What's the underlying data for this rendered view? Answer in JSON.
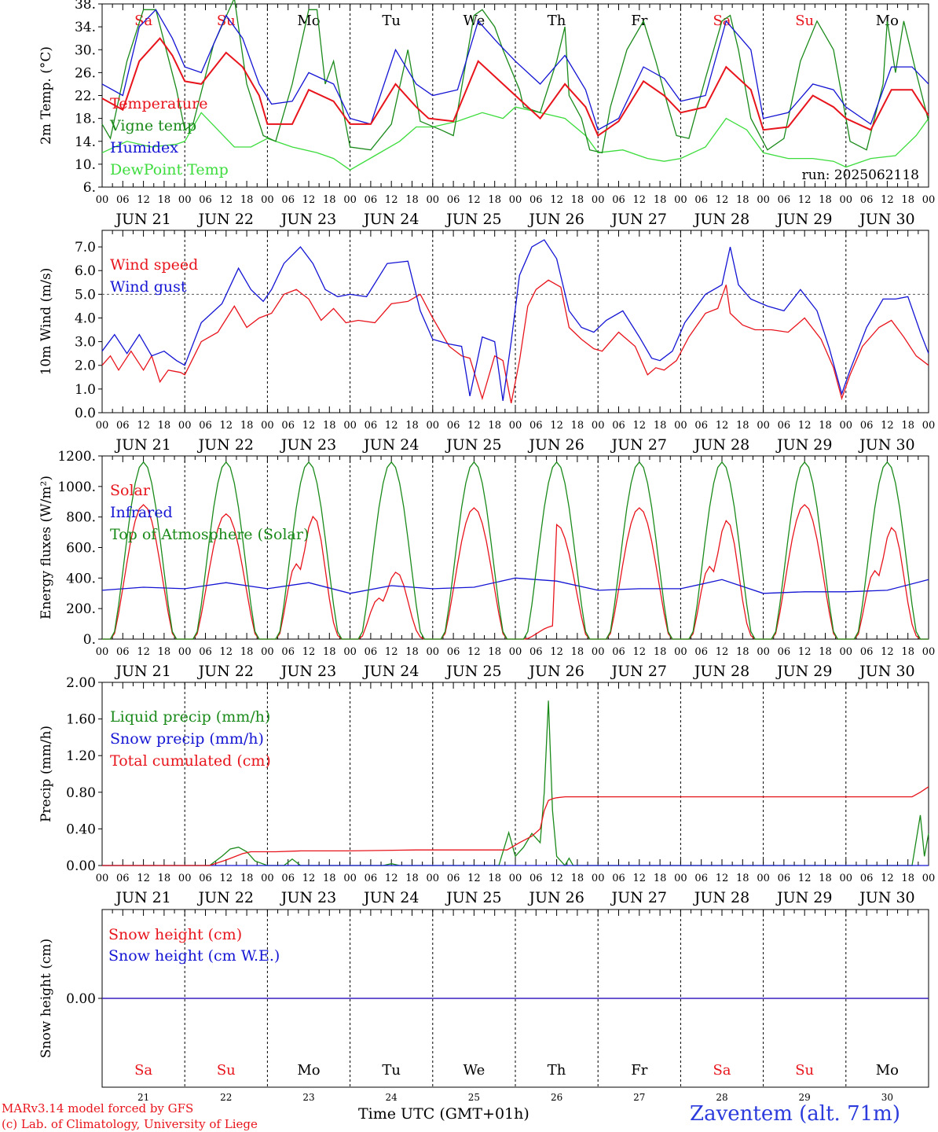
{
  "x_axis": {
    "hour_ticks": [
      "00",
      "06",
      "12",
      "18"
    ],
    "end_tick": "00",
    "month": "JUN",
    "days": [
      "21",
      "22",
      "23",
      "24",
      "25",
      "26",
      "27",
      "28",
      "29",
      "30"
    ],
    "weekdays": [
      "Sa",
      "Su",
      "Mo",
      "Tu",
      "We",
      "Th",
      "Fr",
      "Sa",
      "Su",
      "Mo"
    ],
    "weekend_color": "#e8141c",
    "weekday_color": "#000000",
    "xlabel": "Time UTC (GMT+01h)"
  },
  "footer": {
    "model_line": "MARv3.14 model forced by GFS",
    "credit_line": "(c) Lab. of Climatology, University of Liege",
    "station": "Zaventem (alt. 71m)"
  },
  "chart_data": [
    {
      "id": "temp",
      "type": "line",
      "ylabel": "2m Temp. (°C)",
      "ylim": [
        6,
        38
      ],
      "yticks": [
        6,
        10,
        14,
        18,
        22,
        26,
        30,
        34,
        38
      ],
      "ytick_labels": [
        "6.",
        "10.",
        "14.",
        "18.",
        "22.",
        "26.",
        "30.",
        "34.",
        "38."
      ],
      "annotation": "run: 2025062118",
      "refline": null,
      "x_range_days": [
        0,
        10
      ],
      "series": [
        {
          "name": "Temperature",
          "color": "#e8141c",
          "x": [
            0,
            0.25,
            0.45,
            0.7,
            0.85,
            1,
            1.2,
            1.5,
            1.7,
            1.9,
            2,
            2.3,
            2.5,
            2.8,
            3,
            3.25,
            3.55,
            3.8,
            3.95,
            4.25,
            4.55,
            4.85,
            5,
            5.3,
            5.6,
            5.85,
            6,
            6.25,
            6.55,
            6.8,
            7,
            7.3,
            7.55,
            7.85,
            8,
            8.3,
            8.6,
            8.85,
            9,
            9.3,
            9.55,
            9.8,
            10
          ],
          "values": [
            21.5,
            19.5,
            28,
            32,
            29,
            24.5,
            24,
            29.5,
            27,
            22,
            17,
            17,
            23,
            21,
            17,
            17,
            24,
            20,
            18,
            17.5,
            28,
            24,
            22,
            18,
            24,
            20,
            15,
            17.5,
            24.5,
            22,
            19,
            20,
            27,
            23,
            16,
            16.5,
            22,
            20,
            18,
            16,
            23,
            23,
            18.5
          ]
        },
        {
          "name": "Vigne temp",
          "color": "#1a8a1a",
          "x": [
            0,
            0.1,
            0.3,
            0.5,
            0.65,
            0.9,
            1,
            1.1,
            1.35,
            1.6,
            1.75,
            1.95,
            2.1,
            2.3,
            2.5,
            2.6,
            2.7,
            2.8,
            3,
            3.25,
            3.5,
            3.7,
            3.85,
            4.1,
            4.25,
            4.5,
            4.6,
            4.75,
            4.85,
            5.05,
            5.1,
            5.3,
            5.5,
            5.6,
            5.65,
            5.8,
            5.9,
            6.05,
            6.15,
            6.35,
            6.55,
            6.7,
            6.85,
            6.95,
            7.1,
            7.3,
            7.5,
            7.6,
            7.7,
            7.85,
            8.05,
            8.25,
            8.45,
            8.65,
            8.85,
            9.05,
            9.25,
            9.45,
            9.5,
            9.6,
            9.7,
            9.85,
            10
          ],
          "values": [
            17,
            14.5,
            28,
            37,
            37,
            23,
            16,
            17,
            31,
            39,
            24,
            15,
            14,
            24,
            37,
            37,
            24,
            28,
            13,
            12.5,
            17,
            30,
            17.5,
            16,
            15,
            36,
            37,
            34,
            30,
            23,
            20,
            19,
            28,
            34,
            22,
            18,
            12.5,
            12,
            20,
            30,
            35,
            28,
            20,
            15,
            14.5,
            25,
            35,
            36,
            30,
            18,
            12.5,
            14.5,
            28,
            35,
            30,
            14,
            12.5,
            24,
            35,
            26,
            35,
            26,
            17.5
          ]
        },
        {
          "name": "Humidex",
          "color": "#1414d4",
          "x": [
            0,
            0.25,
            0.45,
            0.65,
            0.85,
            1,
            1.2,
            1.5,
            1.7,
            1.9,
            2.05,
            2.3,
            2.5,
            2.8,
            3,
            3.25,
            3.55,
            3.8,
            4,
            4.3,
            4.55,
            4.8,
            5,
            5.3,
            5.6,
            5.85,
            6,
            6.25,
            6.55,
            6.8,
            7,
            7.3,
            7.55,
            7.85,
            8,
            8.3,
            8.6,
            8.85,
            9,
            9.3,
            9.55,
            9.8,
            10
          ],
          "values": [
            24,
            22,
            34,
            37,
            32,
            27,
            26,
            36,
            32,
            24,
            20.5,
            21,
            26,
            24,
            18,
            17,
            30,
            24,
            22,
            23,
            35,
            31,
            28,
            24,
            29,
            23,
            16,
            18,
            27,
            25,
            21,
            22,
            35,
            30,
            18,
            19,
            24,
            23,
            20,
            17,
            27,
            27,
            24
          ]
        },
        {
          "name": "DewPoint Temp",
          "color": "#3cdc3c",
          "x": [
            0,
            0.3,
            0.6,
            0.9,
            1,
            1.2,
            1.4,
            1.6,
            1.8,
            2,
            2.3,
            2.6,
            2.8,
            3,
            3.3,
            3.6,
            3.8,
            4,
            4.3,
            4.6,
            4.85,
            5,
            5.3,
            5.6,
            5.85,
            6,
            6.3,
            6.6,
            6.8,
            7,
            7.3,
            7.55,
            7.8,
            8,
            8.3,
            8.6,
            8.85,
            9,
            9.3,
            9.6,
            9.85,
            10
          ],
          "values": [
            12,
            14,
            13,
            13.5,
            14,
            19,
            16,
            13,
            13,
            14.5,
            13,
            12,
            11,
            9,
            11.5,
            14,
            16.5,
            16.5,
            17.5,
            19,
            18,
            20,
            19,
            18,
            15,
            12,
            12.5,
            11,
            10.5,
            11,
            13,
            18,
            16,
            12,
            11,
            11,
            10.5,
            9.5,
            11,
            11.5,
            15,
            18
          ]
        }
      ]
    },
    {
      "id": "wind",
      "type": "line",
      "ylabel": "10m Wind (m/s)",
      "ylim": [
        0,
        7.7
      ],
      "yticks": [
        0,
        1,
        2,
        3,
        4,
        5,
        6,
        7
      ],
      "ytick_labels": [
        "0.0",
        "1.0",
        "2.0",
        "3.0",
        "4.0",
        "5.0",
        "6.0",
        "7.0"
      ],
      "refline": 5,
      "x_range_days": [
        0,
        10
      ],
      "series": [
        {
          "name": "Wind speed",
          "color": "#e8141c",
          "x": [
            0,
            0.1,
            0.2,
            0.35,
            0.5,
            0.6,
            0.7,
            0.8,
            0.95,
            1,
            1.2,
            1.4,
            1.6,
            1.75,
            1.9,
            2.05,
            2.2,
            2.35,
            2.5,
            2.65,
            2.8,
            2.95,
            3.1,
            3.3,
            3.5,
            3.7,
            3.85,
            4,
            4.2,
            4.35,
            4.45,
            4.6,
            4.75,
            4.85,
            4.95,
            5.05,
            5.15,
            5.25,
            5.4,
            5.55,
            5.65,
            5.8,
            5.95,
            6.05,
            6.25,
            6.45,
            6.6,
            6.7,
            6.8,
            6.95,
            7.1,
            7.3,
            7.45,
            7.55,
            7.6,
            7.75,
            7.9,
            8.1,
            8.3,
            8.5,
            8.7,
            8.85,
            8.95,
            9.05,
            9.2,
            9.4,
            9.55,
            9.7,
            9.85,
            10
          ],
          "values": [
            2,
            2.4,
            1.8,
            2.6,
            1.8,
            2.4,
            1.3,
            1.8,
            1.7,
            1.6,
            3,
            3.4,
            4.5,
            3.6,
            4,
            4.2,
            5,
            5.2,
            4.8,
            3.9,
            4.4,
            3.8,
            3.9,
            3.8,
            4.6,
            4.7,
            5,
            4,
            2.8,
            2.4,
            2.3,
            0.6,
            2.4,
            2.2,
            0.4,
            2.2,
            4.5,
            5.2,
            5.6,
            5.3,
            3.6,
            3.1,
            2.7,
            2.6,
            3.4,
            2.8,
            1.6,
            1.9,
            1.8,
            2.2,
            3.2,
            4.2,
            4.4,
            5.4,
            4.2,
            3.7,
            3.5,
            3.5,
            3.4,
            4,
            3.1,
            1.9,
            0.6,
            1.6,
            2.8,
            3.6,
            3.9,
            3.2,
            2.4,
            2
          ]
        },
        {
          "name": "Wind gust",
          "color": "#1414d4",
          "x": [
            0,
            0.15,
            0.3,
            0.45,
            0.6,
            0.75,
            0.9,
            1,
            1.2,
            1.45,
            1.65,
            1.8,
            1.95,
            2.05,
            2.2,
            2.4,
            2.55,
            2.7,
            2.85,
            3,
            3.2,
            3.45,
            3.7,
            3.85,
            4,
            4.2,
            4.35,
            4.45,
            4.6,
            4.75,
            4.85,
            4.95,
            5.05,
            5.2,
            5.35,
            5.5,
            5.65,
            5.8,
            5.95,
            6.1,
            6.3,
            6.5,
            6.65,
            6.75,
            6.9,
            7.05,
            7.3,
            7.5,
            7.6,
            7.7,
            7.85,
            8.05,
            8.25,
            8.45,
            8.65,
            8.8,
            8.95,
            9.05,
            9.25,
            9.45,
            9.6,
            9.75,
            9.9,
            10
          ],
          "values": [
            2.6,
            3.3,
            2.5,
            3.3,
            2.4,
            2.6,
            2.2,
            2,
            3.8,
            4.6,
            6.1,
            5.2,
            4.7,
            5.2,
            6.3,
            7,
            6.3,
            5.2,
            4.9,
            5,
            4.9,
            6.3,
            6.4,
            4.3,
            3.1,
            2.9,
            2.8,
            0.7,
            3.2,
            3,
            0.5,
            3,
            5.8,
            7,
            7.3,
            6.5,
            4.3,
            3.6,
            3.4,
            3.9,
            4.3,
            3.2,
            2.3,
            2.2,
            2.6,
            3.8,
            5,
            5.4,
            7,
            5.4,
            4.8,
            4.5,
            4.3,
            5.2,
            4.3,
            2.7,
            0.8,
            1.8,
            3.6,
            4.8,
            4.8,
            4.9,
            3.4,
            2.5
          ]
        }
      ]
    },
    {
      "id": "energy",
      "type": "line",
      "ylabel": "Energy fluxes (W/m²)",
      "ylim": [
        0,
        1200
      ],
      "yticks": [
        0,
        200,
        400,
        600,
        800,
        1000,
        1200
      ],
      "ytick_labels": [
        "0.",
        "200.",
        "400.",
        "600.",
        "800.",
        "1000.",
        "1200."
      ],
      "refline": null,
      "x_range_days": [
        0,
        10
      ],
      "series": [
        {
          "name": "Solar",
          "color": "#e8141c",
          "peaks": [
            880,
            820,
            880,
            480,
            860,
            750,
            860,
            850,
            880,
            800
          ],
          "x": [],
          "values": []
        },
        {
          "name": "Infrared",
          "color": "#1414d4",
          "x": [
            0,
            0.5,
            1,
            1.5,
            2,
            2.5,
            3,
            3.5,
            4,
            4.5,
            5,
            5.5,
            6,
            6.5,
            7,
            7.5,
            8,
            8.5,
            9,
            9.5,
            10
          ],
          "values": [
            320,
            340,
            330,
            370,
            330,
            370,
            300,
            350,
            330,
            340,
            400,
            380,
            320,
            330,
            330,
            390,
            300,
            310,
            310,
            320,
            390
          ]
        },
        {
          "name": "Top of Atmosphere (Solar)",
          "color": "#1a8a1a",
          "peak": 1160,
          "x": [],
          "values": []
        }
      ]
    },
    {
      "id": "precip",
      "type": "line",
      "ylabel": "Precip (mm/h)",
      "ylim": [
        0,
        2.0
      ],
      "yticks": [
        0,
        0.4,
        0.8,
        1.2,
        1.6,
        2.0
      ],
      "ytick_labels": [
        "0.00",
        "0.40",
        "0.80",
        "1.20",
        "1.60",
        "2.00"
      ],
      "refline": null,
      "x_range_days": [
        0,
        10
      ],
      "series": [
        {
          "name": "Liquid precip (mm/h)",
          "color": "#1a8a1a",
          "x": [
            0,
            1.3,
            1.45,
            1.55,
            1.65,
            1.75,
            1.85,
            2,
            2.2,
            2.3,
            2.4,
            3,
            3.4,
            3.5,
            3.6,
            4.8,
            4.92,
            5,
            5.1,
            5.2,
            5.3,
            5.35,
            5.4,
            5.45,
            5.5,
            5.6,
            5.65,
            5.7,
            6,
            8,
            9.8,
            9.9,
            9.95,
            10
          ],
          "values": [
            0,
            0,
            0.1,
            0.18,
            0.2,
            0.15,
            0.05,
            0,
            0,
            0.07,
            0,
            0,
            0,
            0.02,
            0,
            0,
            0.36,
            0.1,
            0.2,
            0.35,
            0.25,
            0.8,
            1.8,
            0.6,
            0.1,
            0,
            0.08,
            0,
            0,
            0,
            0,
            0.55,
            0.1,
            0.35
          ]
        },
        {
          "name": "Snow precip (mm/h)",
          "color": "#1414d4",
          "x": [
            0,
            10
          ],
          "values": [
            0,
            0
          ]
        },
        {
          "name": "Total cumulated (cm)",
          "color": "#e8141c",
          "x": [
            0,
            1.3,
            1.5,
            1.7,
            1.8,
            2.1,
            2.4,
            3,
            3.8,
            4.9,
            5.05,
            5.2,
            5.3,
            5.35,
            5.4,
            5.45,
            5.5,
            5.6,
            6,
            9.8,
            9.9,
            10
          ],
          "values": [
            0,
            0,
            0.06,
            0.13,
            0.15,
            0.15,
            0.16,
            0.16,
            0.17,
            0.17,
            0.25,
            0.32,
            0.4,
            0.6,
            0.71,
            0.73,
            0.74,
            0.75,
            0.75,
            0.75,
            0.8,
            0.86
          ]
        }
      ]
    },
    {
      "id": "snow",
      "type": "line",
      "ylabel": "Snow height (cm)",
      "ylim": [
        -1,
        1
      ],
      "yticks": [
        0
      ],
      "ytick_labels": [
        "0.00"
      ],
      "refline": null,
      "x_range_days": [
        0,
        10
      ],
      "series": [
        {
          "name": "Snow height (cm)",
          "color": "#e8141c",
          "x": [
            0,
            10
          ],
          "values": [
            0,
            0
          ]
        },
        {
          "name": "Snow height (cm W.E.)",
          "color": "#1414d4",
          "x": [
            0,
            10
          ],
          "values": [
            0,
            0
          ]
        }
      ]
    }
  ]
}
